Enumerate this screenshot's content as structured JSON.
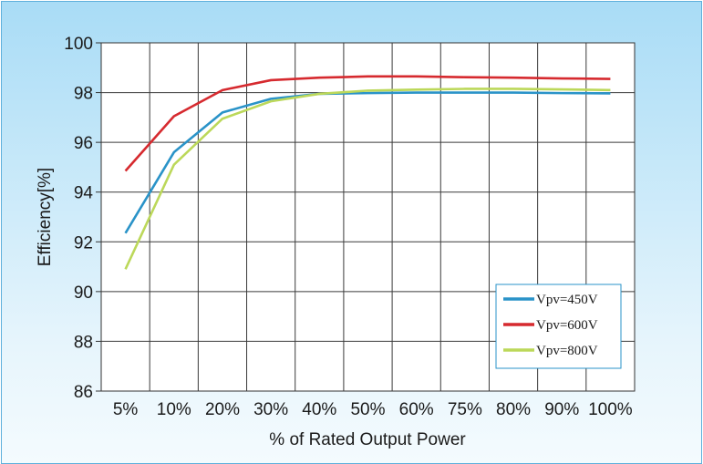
{
  "chart_data": {
    "type": "line",
    "title": "",
    "xlabel": "% of Rated Output Power",
    "ylabel": "Efficiency[%]",
    "categories": [
      "5%",
      "10%",
      "20%",
      "30%",
      "40%",
      "50%",
      "60%",
      "75%",
      "80%",
      "90%",
      "100%"
    ],
    "ylim": [
      86,
      100
    ],
    "yticks": [
      86,
      88,
      90,
      92,
      94,
      96,
      98,
      100
    ],
    "grid": true,
    "legend_position": "bottom-right",
    "series": [
      {
        "name": "Vpv=450V",
        "color": "#2a93c8",
        "values": [
          92.35,
          95.6,
          97.2,
          97.75,
          97.95,
          97.98,
          98.0,
          98.0,
          98.0,
          97.98,
          97.97
        ]
      },
      {
        "name": "Vpv=600V",
        "color": "#d62a2f",
        "values": [
          94.85,
          97.05,
          98.1,
          98.5,
          98.6,
          98.65,
          98.65,
          98.62,
          98.6,
          98.57,
          98.55
        ]
      },
      {
        "name": "Vpv=800V",
        "color": "#bcd85a",
        "values": [
          90.9,
          95.1,
          96.95,
          97.65,
          97.95,
          98.08,
          98.12,
          98.15,
          98.15,
          98.13,
          98.1
        ]
      }
    ]
  }
}
